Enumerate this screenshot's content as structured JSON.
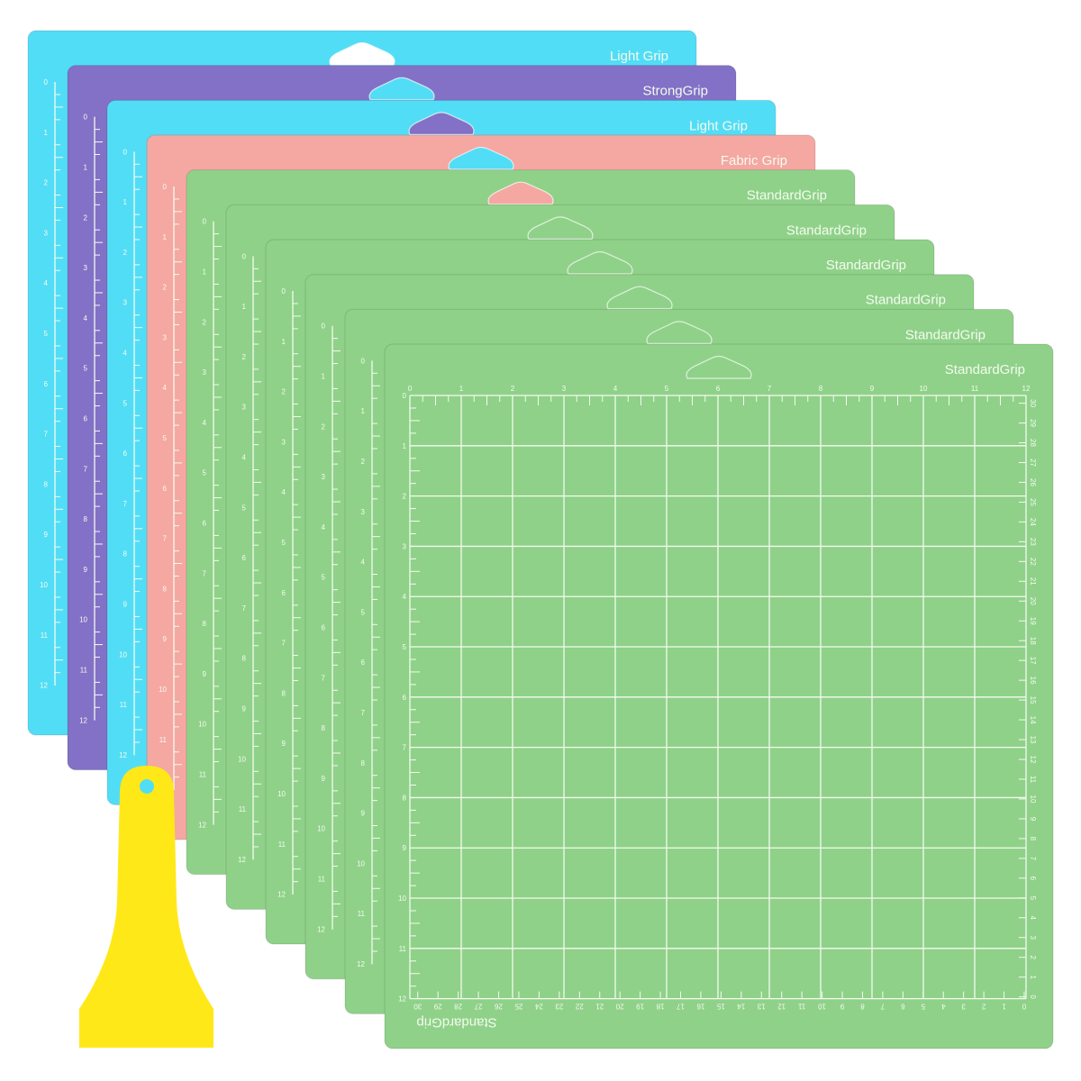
{
  "product": {
    "mats": [
      {
        "label": "Light Grip",
        "color": "#52ddf6"
      },
      {
        "label": "StrongGrip",
        "color": "#8271c6"
      },
      {
        "label": "Light Grip",
        "color": "#52ddf6"
      },
      {
        "label": "Fabric Grip",
        "color": "#f5a7a2"
      },
      {
        "label": "StandardGrip",
        "color": "#8fd189"
      },
      {
        "label": "StandardGrip",
        "color": "#8fd189"
      },
      {
        "label": "StandardGrip",
        "color": "#8fd189"
      },
      {
        "label": "StandardGrip",
        "color": "#8fd189"
      },
      {
        "label": "StandardGrip",
        "color": "#8fd189"
      },
      {
        "label": "StandardGrip",
        "color": "#8fd189"
      }
    ],
    "front_mat": {
      "bottom_label": "StandardGrip",
      "inch_scale": [
        "0",
        "1",
        "2",
        "3",
        "4",
        "5",
        "6",
        "7",
        "8",
        "9",
        "10",
        "11",
        "12"
      ],
      "cm_scale": [
        "30",
        "29",
        "28",
        "27",
        "26",
        "25",
        "24",
        "23",
        "22",
        "21",
        "20",
        "19",
        "18",
        "17",
        "16",
        "15",
        "14",
        "13",
        "12",
        "11",
        "10",
        "9",
        "8",
        "7",
        "6",
        "5",
        "4",
        "3",
        "2",
        "1",
        "0"
      ]
    },
    "scraper": {
      "color": "#ffe818"
    },
    "line_color": "#f4fbef"
  }
}
